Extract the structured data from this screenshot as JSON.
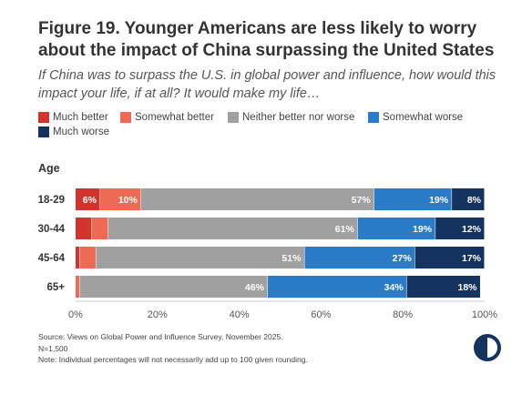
{
  "header": {
    "title": "Figure 19. Younger Americans are less likely to worry about the impact of China surpassing the United States",
    "subtitle": "If China was to surpass the U.S. in global power and influence, how would this impact your life, if at all? It would make my life…"
  },
  "legend": {
    "items": [
      {
        "label": "Much better",
        "color": "#d0342c"
      },
      {
        "label": "Somewhat better",
        "color": "#ee6a55"
      },
      {
        "label": "Neither better nor worse",
        "color": "#a0a0a0"
      },
      {
        "label": "Somewhat worse",
        "color": "#2a7cc8"
      },
      {
        "label": "Much worse",
        "color": "#14335e"
      }
    ]
  },
  "chart_data": {
    "type": "bar",
    "orientation": "horizontal",
    "stacked": true,
    "ylabel": "Age",
    "categories": [
      "18-29",
      "30-44",
      "45-64",
      "65+"
    ],
    "series": [
      {
        "name": "Much better",
        "color": "#d0342c",
        "values": [
          6,
          4,
          1,
          0
        ],
        "labels": [
          "6%",
          "",
          "",
          ""
        ]
      },
      {
        "name": "Somewhat better",
        "color": "#ee6a55",
        "values": [
          10,
          4,
          4,
          1
        ],
        "labels": [
          "10%",
          "",
          "",
          ""
        ]
      },
      {
        "name": "Neither better nor worse",
        "color": "#a0a0a0",
        "values": [
          57,
          61,
          51,
          46
        ],
        "labels": [
          "57%",
          "61%",
          "51%",
          "46%"
        ]
      },
      {
        "name": "Somewhat worse",
        "color": "#2a7cc8",
        "values": [
          19,
          19,
          27,
          34
        ],
        "labels": [
          "19%",
          "19%",
          "27%",
          "34%"
        ]
      },
      {
        "name": "Much worse",
        "color": "#14335e",
        "values": [
          8,
          12,
          17,
          18
        ],
        "labels": [
          "8%",
          "12%",
          "17%",
          "18%"
        ]
      }
    ],
    "xlim": [
      0,
      100
    ],
    "xticks": [
      "0%",
      "20%",
      "40%",
      "60%",
      "80%",
      "100%"
    ],
    "grid": false,
    "legend_position": "top"
  },
  "footer": {
    "source": "Source: Views on Global Power and Influence Survey, November 2025.",
    "n": "N=1,500",
    "note": "Note: Individual percentages will not necessarily add up to 100 given rounding."
  },
  "logo": {
    "icon": "half-circle-logo-icon",
    "color": "#14335e"
  }
}
